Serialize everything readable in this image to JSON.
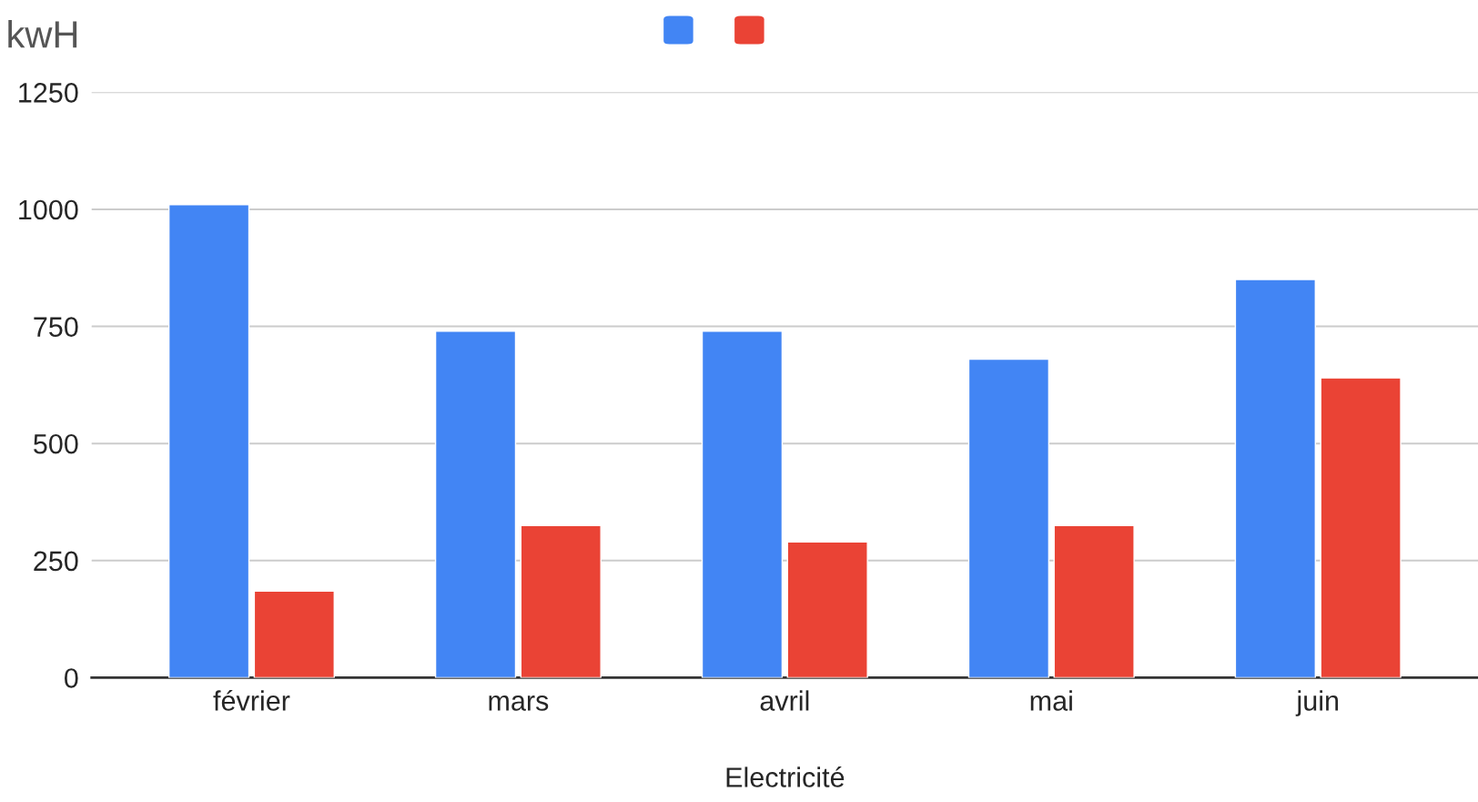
{
  "chart_data": {
    "type": "bar",
    "xlabel": "Electricité",
    "ylabel": "kwH",
    "categories": [
      "février",
      "mars",
      "avril",
      "mai",
      "juin"
    ],
    "series": [
      {
        "color": "#4285f4",
        "values": [
          1010,
          740,
          740,
          680,
          850
        ]
      },
      {
        "color": "#ea4335",
        "values": [
          185,
          325,
          290,
          325,
          640
        ]
      }
    ],
    "ylim": [
      0,
      1250
    ],
    "yticks": [
      0,
      250,
      500,
      750,
      1000,
      1250
    ],
    "grid": "y"
  }
}
